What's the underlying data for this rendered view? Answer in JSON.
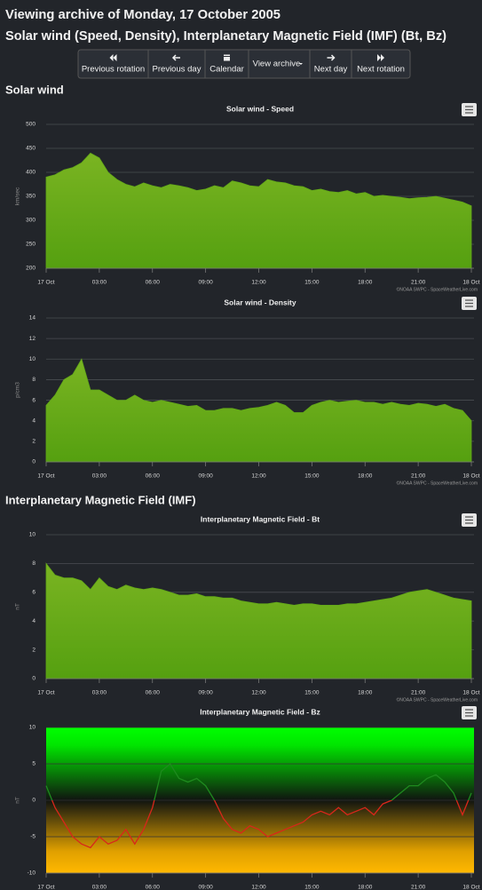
{
  "header": {
    "title": "Viewing archive of Monday, 17 October 2005",
    "subtitle": "Solar wind (Speed, Density), Interplanetary Magnetic Field (IMF) (Bt, Bz)",
    "buttons": [
      "Previous rotation",
      "Previous day",
      "Calendar",
      "View archive",
      "Next day",
      "Next rotation"
    ]
  },
  "sections": [
    "Solar wind",
    "Interplanetary Magnetic Field (IMF)"
  ],
  "chart_data": [
    {
      "type": "area",
      "title": "Solar wind - Speed",
      "y_label": "km/sec",
      "credit": "©NOAA SWPC - SpaceWeatherLive.com",
      "color": "#62a818",
      "grid": true,
      "x": [
        0,
        0.5,
        1,
        1.5,
        2,
        2.5,
        3,
        3.5,
        4,
        4.5,
        5,
        5.5,
        6,
        6.5,
        7,
        7.5,
        8,
        8.5,
        9,
        9.5,
        10,
        10.5,
        11,
        11.5,
        12,
        12.5,
        13,
        13.5,
        14,
        14.5,
        15,
        15.5,
        16,
        16.5,
        17,
        17.5,
        18,
        18.5,
        19,
        19.5,
        20,
        20.5,
        21,
        21.5,
        22,
        22.5,
        23,
        23.5,
        24
      ],
      "values": [
        390,
        395,
        405,
        410,
        420,
        440,
        430,
        400,
        385,
        375,
        370,
        378,
        372,
        368,
        375,
        372,
        368,
        362,
        365,
        372,
        368,
        382,
        378,
        372,
        370,
        385,
        380,
        378,
        372,
        370,
        362,
        365,
        360,
        358,
        362,
        355,
        358,
        350,
        352,
        350,
        348,
        345,
        347,
        348,
        350,
        346,
        342,
        338,
        330
      ],
      "xlim": [
        0,
        24
      ],
      "ylim": [
        200,
        500
      ],
      "yticks": [
        200,
        250,
        300,
        350,
        400,
        450,
        500
      ],
      "xticks": [
        {
          "value": 0,
          "label": "17 Oct"
        },
        {
          "value": 3,
          "label": "03:00"
        },
        {
          "value": 6,
          "label": "06:00"
        },
        {
          "value": 9,
          "label": "09:00"
        },
        {
          "value": 12,
          "label": "12:00"
        },
        {
          "value": 15,
          "label": "15:00"
        },
        {
          "value": 18,
          "label": "18:00"
        },
        {
          "value": 21,
          "label": "21:00"
        },
        {
          "value": 24,
          "label": "18 Oct"
        }
      ]
    },
    {
      "type": "area",
      "title": "Solar wind - Density",
      "y_label": "p/cm3",
      "credit": "©NOAA SWPC - SpaceWeatherLive.com",
      "color": "#62a818",
      "grid": true,
      "x": [
        0,
        0.5,
        1,
        1.5,
        2,
        2.5,
        3,
        3.5,
        4,
        4.5,
        5,
        5.5,
        6,
        6.5,
        7,
        7.5,
        8,
        8.5,
        9,
        9.5,
        10,
        10.5,
        11,
        11.5,
        12,
        12.5,
        13,
        13.5,
        14,
        14.5,
        15,
        15.5,
        16,
        16.5,
        17,
        17.5,
        18,
        18.5,
        19,
        19.5,
        20,
        20.5,
        21,
        21.5,
        22,
        22.5,
        23,
        23.5,
        24
      ],
      "values": [
        5.5,
        6.5,
        8,
        8.5,
        10,
        7,
        7,
        6.5,
        6,
        6,
        6.5,
        6,
        5.8,
        6,
        5.8,
        5.6,
        5.4,
        5.5,
        5,
        5,
        5.2,
        5.2,
        5,
        5.2,
        5.3,
        5.5,
        5.8,
        5.5,
        4.8,
        4.8,
        5.5,
        5.8,
        6,
        5.8,
        5.9,
        6,
        5.8,
        5.8,
        5.6,
        5.8,
        5.6,
        5.5,
        5.7,
        5.6,
        5.4,
        5.6,
        5.2,
        5,
        4
      ],
      "xlim": [
        0,
        24
      ],
      "ylim": [
        0,
        14
      ],
      "yticks": [
        0,
        2,
        4,
        6,
        8,
        10,
        12,
        14
      ],
      "xticks": [
        {
          "value": 0,
          "label": "17 Oct"
        },
        {
          "value": 3,
          "label": "03:00"
        },
        {
          "value": 6,
          "label": "06:00"
        },
        {
          "value": 9,
          "label": "09:00"
        },
        {
          "value": 12,
          "label": "12:00"
        },
        {
          "value": 15,
          "label": "15:00"
        },
        {
          "value": 18,
          "label": "18:00"
        },
        {
          "value": 21,
          "label": "21:00"
        },
        {
          "value": 24,
          "label": "18 Oct"
        }
      ]
    },
    {
      "type": "area",
      "title": "Interplanetary Magnetic Field - Bt",
      "y_label": "nT",
      "credit": "©NOAA SWPC - SpaceWeatherLive.com",
      "color": "#62a818",
      "grid": true,
      "x": [
        0,
        0.5,
        1,
        1.5,
        2,
        2.5,
        3,
        3.5,
        4,
        4.5,
        5,
        5.5,
        6,
        6.5,
        7,
        7.5,
        8,
        8.5,
        9,
        9.5,
        10,
        10.5,
        11,
        11.5,
        12,
        12.5,
        13,
        13.5,
        14,
        14.5,
        15,
        15.5,
        16,
        16.5,
        17,
        17.5,
        18,
        18.5,
        19,
        19.5,
        20,
        20.5,
        21,
        21.5,
        22,
        22.5,
        23,
        23.5,
        24
      ],
      "values": [
        8,
        7.2,
        7,
        7,
        6.8,
        6.2,
        7,
        6.4,
        6.2,
        6.5,
        6.3,
        6.2,
        6.3,
        6.2,
        6,
        5.8,
        5.8,
        5.9,
        5.7,
        5.7,
        5.6,
        5.6,
        5.4,
        5.3,
        5.2,
        5.2,
        5.3,
        5.2,
        5.1,
        5.2,
        5.2,
        5.1,
        5.1,
        5.1,
        5.2,
        5.2,
        5.3,
        5.4,
        5.5,
        5.6,
        5.8,
        6,
        6.1,
        6.2,
        6,
        5.8,
        5.6,
        5.5,
        5.4
      ],
      "xlim": [
        0,
        24
      ],
      "ylim": [
        0,
        10
      ],
      "yticks": [
        0,
        2,
        4,
        6,
        8,
        10
      ],
      "xticks": [
        {
          "value": 0,
          "label": "17 Oct"
        },
        {
          "value": 3,
          "label": "03:00"
        },
        {
          "value": 6,
          "label": "06:00"
        },
        {
          "value": 9,
          "label": "09:00"
        },
        {
          "value": 12,
          "label": "12:00"
        },
        {
          "value": 15,
          "label": "15:00"
        },
        {
          "value": 18,
          "label": "18:00"
        },
        {
          "value": 21,
          "label": "21:00"
        },
        {
          "value": 24,
          "label": "18 Oct"
        }
      ]
    },
    {
      "type": "line",
      "title": "Interplanetary Magnetic Field - Bz",
      "y_label": "nT",
      "positive_color": "#1e8a1e",
      "negative_color": "#d8261a",
      "grid": true,
      "x": [
        0,
        0.5,
        1,
        1.5,
        2,
        2.5,
        3,
        3.5,
        4,
        4.5,
        5,
        5.5,
        6,
        6.5,
        7,
        7.5,
        8,
        8.5,
        9,
        9.5,
        10,
        10.5,
        11,
        11.5,
        12,
        12.5,
        13,
        13.5,
        14,
        14.5,
        15,
        15.5,
        16,
        16.5,
        17,
        17.5,
        18,
        18.5,
        19,
        19.5,
        20,
        20.5,
        21,
        21.5,
        22,
        22.5,
        23,
        23.5,
        24
      ],
      "values": [
        2,
        -1,
        -3,
        -5,
        -6,
        -6.5,
        -5,
        -6,
        -5.5,
        -4,
        -6,
        -4,
        -1,
        4,
        5,
        3,
        2.5,
        3,
        2,
        0,
        -2.5,
        -4,
        -4.5,
        -3.5,
        -4,
        -5,
        -4.5,
        -4,
        -3.5,
        -3,
        -2,
        -1.5,
        -2,
        -1,
        -2,
        -1.5,
        -1,
        -2,
        -0.5,
        0,
        1,
        2,
        2,
        3,
        3.5,
        2.5,
        1,
        -2,
        1
      ],
      "xlim": [
        0,
        24
      ],
      "ylim": [
        -10,
        10
      ],
      "yticks": [
        -10,
        -5,
        0,
        5,
        10
      ],
      "xticks": [
        {
          "value": 0,
          "label": "17 Oct"
        },
        {
          "value": 3,
          "label": "03:00"
        },
        {
          "value": 6,
          "label": "06:00"
        },
        {
          "value": 9,
          "label": "09:00"
        },
        {
          "value": 12,
          "label": "12:00"
        },
        {
          "value": 15,
          "label": "15:00"
        },
        {
          "value": 18,
          "label": "18:00"
        },
        {
          "value": 21,
          "label": "21:00"
        },
        {
          "value": 24,
          "label": "18 Oct"
        }
      ]
    }
  ]
}
